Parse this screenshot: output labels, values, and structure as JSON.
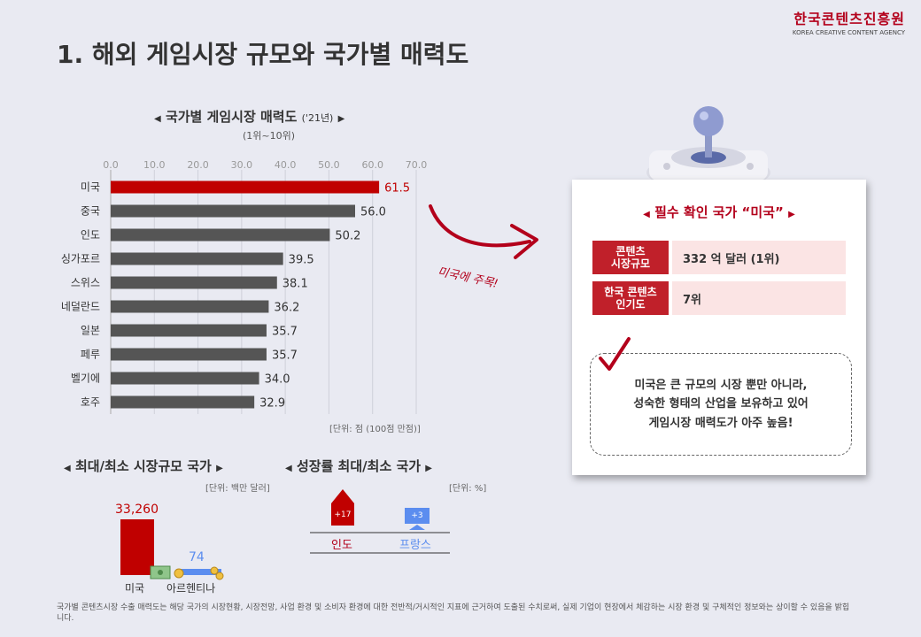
{
  "brand": {
    "korean": "한국콘텐츠진흥원",
    "english": "KOREA CREATIVE CONTENT AGENCY"
  },
  "page_title": "1. 해외 게임시장 규모와 국가별 매력도",
  "chart_section": {
    "title": "국가별 게임시장 매력도",
    "year_note": "('21년)",
    "subtitle": "(1위~10위)",
    "unit": "[단위: 점 (100점 만점)]"
  },
  "chart_data": {
    "type": "bar",
    "orientation": "horizontal",
    "categories": [
      "미국",
      "중국",
      "인도",
      "싱가포르",
      "스위스",
      "네덜란드",
      "일본",
      "페루",
      "벨기에",
      "호주"
    ],
    "values": [
      61.5,
      56.0,
      50.2,
      39.5,
      38.1,
      36.2,
      35.7,
      35.7,
      34.0,
      32.9
    ],
    "value_labels": [
      "61.5",
      "56.0",
      "50.2",
      "39.5",
      "38.1",
      "36.2",
      "35.7",
      "35.7",
      "34.0",
      "32.9"
    ],
    "xlim": [
      0,
      70
    ],
    "ticks": [
      "0.0",
      "10.0",
      "20.0",
      "30.0",
      "40.0",
      "50.0",
      "60.0",
      "70.0"
    ],
    "grid": true,
    "colors": {
      "highlight": "#c00000",
      "default": "#555555"
    }
  },
  "annotation": "미국에 주목!",
  "focus_panel": {
    "title": "필수 확인 국가 “미국”",
    "rows": [
      {
        "key_line1": "콘텐츠",
        "key_line2": "시장규모",
        "value": "332 억 달러 (1위)"
      },
      {
        "key_line1": "한국 콘텐츠",
        "key_line2": "인기도",
        "value": "7위"
      }
    ],
    "note_lines": [
      "미국은 큰 규모의 시장 뿐만 아니라,",
      "성숙한 형태의 산업을 보유하고 있어",
      "게임시장 매력도가 아주 높음!"
    ]
  },
  "market_size": {
    "title": "최대/최소 시장규모 국가",
    "unit": "[단위: 백만 달러]",
    "max": {
      "country": "미국",
      "value": "33,260"
    },
    "min": {
      "country": "아르헨티나",
      "value": "74"
    }
  },
  "growth": {
    "title": "성장률 최대/최소 국가",
    "unit": "[단위: %]",
    "max": {
      "country": "인도",
      "value": "+17"
    },
    "min": {
      "country": "프랑스",
      "value": "+3"
    }
  },
  "footnote": "국가별 콘텐츠시장 수출 매력도는 해당 국가의 시장현황, 시장전망, 사업 환경 및 소비자 환경에 대한 전반적/거시적인 지표에 근거하여 도출된 수치로써, 실제 기업이 현장에서 체감하는 시장 환경 및 구체적인 정보와는 상이할 수 있음을 밝힙니다.",
  "colors": {
    "accent_red": "#b3001b",
    "bar_red": "#c00000",
    "bar_gray": "#555555",
    "blue": "#5b8def",
    "background": "#e9eaf2"
  }
}
